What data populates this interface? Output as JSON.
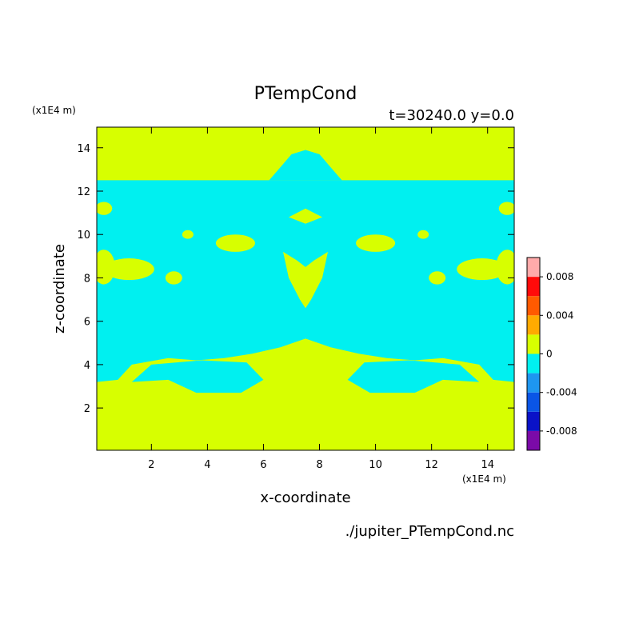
{
  "chart_data": {
    "type": "heatmap",
    "title": "PTempCond",
    "subtitle": "t=30240.0 y=0.0",
    "xlabel": "x-coordinate",
    "ylabel": "z-coordinate",
    "x_unit": "(x1E4 m)",
    "y_unit": "(x1E4 m)",
    "footer": "./jupiter_PTempCond.nc",
    "xlim": [
      0.05,
      14.95
    ],
    "ylim": [
      0.05,
      14.95
    ],
    "x_ticks": [
      2,
      4,
      6,
      8,
      10,
      12,
      14
    ],
    "y_ticks": [
      2,
      4,
      6,
      8,
      10,
      12,
      14
    ],
    "colorbar": {
      "levels": [
        -0.01,
        -0.008,
        -0.006,
        -0.004,
        -0.002,
        0,
        0.002,
        0.004,
        0.006,
        0.008,
        0.01
      ],
      "colors": [
        "#7b0aa8",
        "#0a12c8",
        "#0a55e6",
        "#1e96f0",
        "#00f0f0",
        "#d7ff00",
        "#ffaa00",
        "#ff5a00",
        "#ff0a0a",
        "#ffaaaa"
      ],
      "tick_labels": [
        "-0.008",
        "-0.004",
        "0",
        "0.004",
        "0.008"
      ],
      "tick_values": [
        -0.008,
        -0.004,
        0,
        0.004,
        0.008
      ]
    },
    "regions": {
      "background_value_range": [
        0,
        0.002
      ],
      "background_color": "#d7ff00",
      "negative_value_range": [
        -0.002,
        0
      ],
      "negative_color": "#00f0f0",
      "negative_band": {
        "description_value": "cyan band of slightly negative values",
        "bottom_edge": [
          [
            0.05,
            3.2
          ],
          [
            0.8,
            3.3
          ],
          [
            1.3,
            4.0
          ],
          [
            2.6,
            4.3
          ],
          [
            3.6,
            4.2
          ],
          [
            4.6,
            4.3
          ],
          [
            5.6,
            4.5
          ],
          [
            6.6,
            4.8
          ],
          [
            7.5,
            5.2
          ],
          [
            8.4,
            4.8
          ],
          [
            9.4,
            4.5
          ],
          [
            10.4,
            4.3
          ],
          [
            11.4,
            4.2
          ],
          [
            12.4,
            4.3
          ],
          [
            13.7,
            4.0
          ],
          [
            14.2,
            3.3
          ],
          [
            14.95,
            3.2
          ]
        ],
        "top_edge": [
          [
            0.05,
            12.5
          ],
          [
            14.95,
            12.5
          ]
        ]
      },
      "top_blob": [
        [
          6.2,
          12.5
        ],
        [
          6.6,
          13.1
        ],
        [
          7.0,
          13.7
        ],
        [
          7.5,
          13.9
        ],
        [
          8.0,
          13.7
        ],
        [
          8.4,
          13.1
        ],
        [
          8.8,
          12.5
        ]
      ],
      "lower_lobes": [
        {
          "points": [
            [
              1.3,
              3.2
            ],
            [
              2.6,
              3.3
            ],
            [
              3.6,
              2.7
            ],
            [
              5.2,
              2.7
            ],
            [
              6.0,
              3.3
            ],
            [
              5.4,
              4.1
            ],
            [
              3.8,
              4.2
            ],
            [
              2.0,
              4.0
            ]
          ]
        },
        {
          "points": [
            [
              13.7,
              3.2
            ],
            [
              12.4,
              3.3
            ],
            [
              11.4,
              2.7
            ],
            [
              9.8,
              2.7
            ],
            [
              9.0,
              3.3
            ],
            [
              9.6,
              4.1
            ],
            [
              11.2,
              4.2
            ],
            [
              13.0,
              4.0
            ]
          ]
        }
      ],
      "positive_islands": [
        {
          "cx": 1.2,
          "cy": 8.4,
          "rx": 0.9,
          "ry": 0.5
        },
        {
          "cx": 13.8,
          "cy": 8.4,
          "rx": 0.9,
          "ry": 0.5
        },
        {
          "cx": 0.3,
          "cy": 8.5,
          "rx": 0.4,
          "ry": 0.8
        },
        {
          "cx": 14.7,
          "cy": 8.5,
          "rx": 0.4,
          "ry": 0.8
        },
        {
          "cx": 2.8,
          "cy": 8.0,
          "rx": 0.3,
          "ry": 0.3
        },
        {
          "cx": 12.2,
          "cy": 8.0,
          "rx": 0.3,
          "ry": 0.3
        },
        {
          "cx": 5.0,
          "cy": 9.6,
          "rx": 0.7,
          "ry": 0.4
        },
        {
          "cx": 10.0,
          "cy": 9.6,
          "rx": 0.7,
          "ry": 0.4
        },
        {
          "cx": 3.3,
          "cy": 10.0,
          "rx": 0.2,
          "ry": 0.2
        },
        {
          "cx": 11.7,
          "cy": 10.0,
          "rx": 0.2,
          "ry": 0.2
        },
        {
          "cx": 0.3,
          "cy": 11.2,
          "rx": 0.3,
          "ry": 0.3
        },
        {
          "cx": 14.7,
          "cy": 11.2,
          "rx": 0.3,
          "ry": 0.3
        },
        {
          "cx": 2.3,
          "cy": 13.4,
          "rx": 0.12,
          "ry": 0.12
        },
        {
          "cx": 12.7,
          "cy": 13.4,
          "rx": 0.12,
          "ry": 0.12
        }
      ],
      "center_funnel": [
        [
          6.7,
          9.2
        ],
        [
          7.2,
          8.8
        ],
        [
          7.5,
          8.5
        ],
        [
          7.8,
          8.8
        ],
        [
          8.3,
          9.2
        ],
        [
          8.1,
          8.0
        ],
        [
          7.7,
          7.0
        ],
        [
          7.5,
          6.6
        ],
        [
          7.3,
          7.0
        ],
        [
          6.9,
          8.0
        ]
      ],
      "center_upper": [
        [
          6.9,
          10.8
        ],
        [
          7.5,
          10.5
        ],
        [
          8.1,
          10.8
        ],
        [
          7.5,
          11.2
        ]
      ]
    }
  }
}
